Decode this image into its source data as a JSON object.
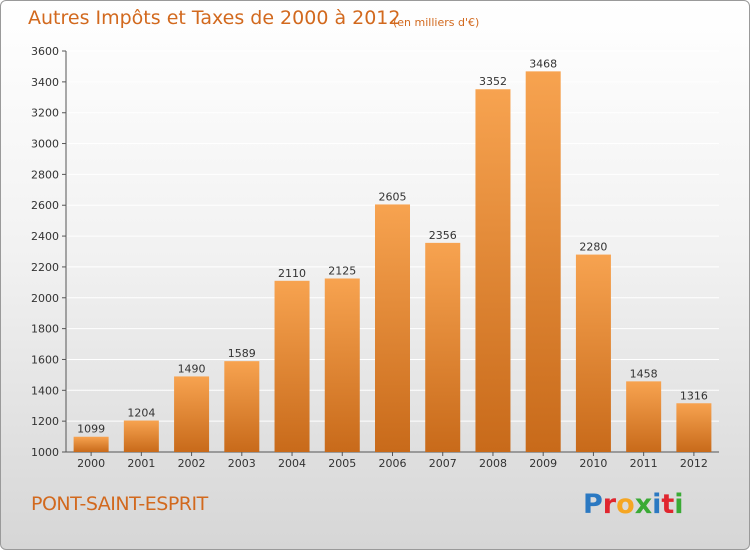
{
  "header": {
    "title": "Autres Impôts et Taxes de 2000 à 2012",
    "unit": "(en milliers d'€)"
  },
  "footer": {
    "city": "PONT-SAINT-ESPRIT",
    "logo": [
      {
        "ch": "P",
        "color": "#2b79c2"
      },
      {
        "ch": "r",
        "color": "#e0262f"
      },
      {
        "ch": "o",
        "color": "#f5a623"
      },
      {
        "ch": "x",
        "color": "#3aaa35"
      },
      {
        "ch": "i",
        "color": "#2b79c2"
      },
      {
        "ch": "t",
        "color": "#e0262f"
      },
      {
        "ch": "i",
        "color": "#3aaa35"
      }
    ]
  },
  "colors": {
    "bar_top": "#f7a350",
    "bar_bottom": "#c86a1a",
    "accent_text": "#d2691e",
    "grid": "#ffffff"
  },
  "chart_data": {
    "type": "bar",
    "categories": [
      "2000",
      "2001",
      "2002",
      "2003",
      "2004",
      "2005",
      "2006",
      "2007",
      "2008",
      "2009",
      "2010",
      "2011",
      "2012"
    ],
    "values": [
      1099,
      1204,
      1490,
      1589,
      2110,
      2125,
      2605,
      2356,
      3352,
      3468,
      2280,
      1458,
      1316
    ],
    "ylim": [
      1000,
      3600
    ],
    "yticks": [
      1000,
      1200,
      1400,
      1600,
      1800,
      2000,
      2200,
      2400,
      2600,
      2800,
      3000,
      3200,
      3400,
      3600
    ],
    "grid": true,
    "data_labels": true
  }
}
